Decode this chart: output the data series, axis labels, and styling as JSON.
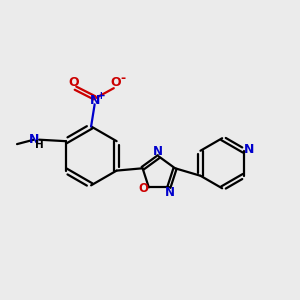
{
  "background_color": "#ebebeb",
  "bond_color": "#000000",
  "N_color": "#0000cc",
  "O_color": "#cc0000",
  "C_color": "#555555",
  "line_width": 1.6,
  "figsize": [
    3.0,
    3.0
  ],
  "dpi": 100,
  "xlim": [
    0.0,
    10.0
  ],
  "ylim": [
    1.0,
    9.0
  ]
}
